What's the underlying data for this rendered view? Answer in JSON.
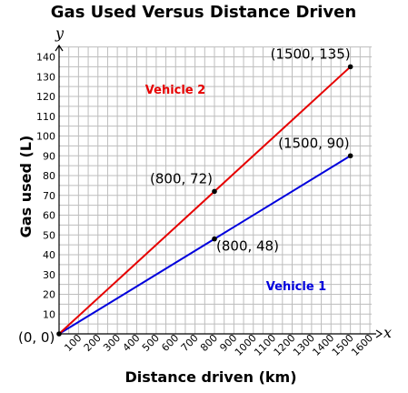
{
  "chart_data": {
    "type": "line",
    "title": "Gas Used Versus Distance Driven",
    "xlabel": "Distance driven (km)",
    "ylabel": "Gas used (L)",
    "x_axis_var": "x",
    "y_axis_var": "y",
    "xlim": [
      0,
      1600
    ],
    "ylim": [
      0,
      145
    ],
    "x_ticks": [
      100,
      200,
      300,
      400,
      500,
      600,
      700,
      800,
      900,
      1000,
      1100,
      1200,
      1300,
      1400,
      1500,
      1600
    ],
    "y_ticks": [
      10,
      20,
      30,
      40,
      50,
      60,
      70,
      80,
      90,
      100,
      110,
      120,
      130,
      140
    ],
    "grid": true,
    "origin_label": "(0, 0)",
    "series": [
      {
        "name": "Vehicle 1",
        "color": "#0000dd",
        "points": [
          {
            "x": 0,
            "y": 0
          },
          {
            "x": 800,
            "y": 48,
            "label": "(800, 48)"
          },
          {
            "x": 1500,
            "y": 90,
            "label": "(1500, 90)"
          }
        ]
      },
      {
        "name": "Vehicle 2",
        "color": "#e60000",
        "points": [
          {
            "x": 0,
            "y": 0
          },
          {
            "x": 800,
            "y": 72,
            "label": "(800, 72)"
          },
          {
            "x": 1500,
            "y": 135,
            "label": "(1500, 135)"
          }
        ]
      }
    ]
  }
}
